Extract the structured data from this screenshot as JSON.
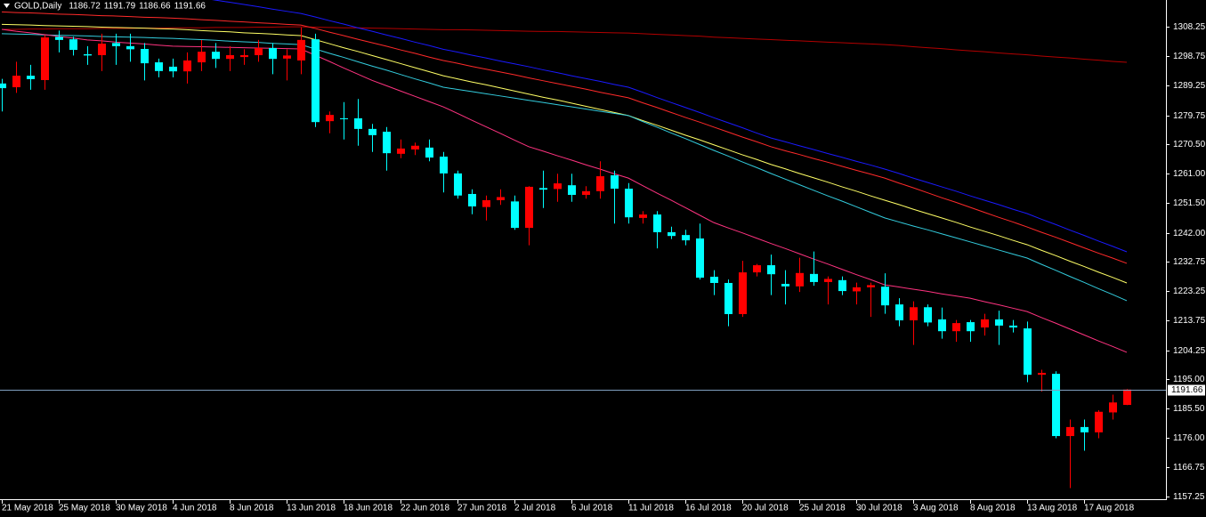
{
  "chart_data": {
    "type": "candlestick",
    "symbol_label": "GOLD,Daily",
    "categories": [
      "21 May 2018",
      null,
      null,
      null,
      "25 May 2018",
      null,
      null,
      null,
      "30 May 2018",
      null,
      null,
      null,
      "4 Jun 2018",
      null,
      null,
      null,
      "8 Jun 2018",
      null,
      null,
      null,
      "13 Jun 2018",
      null,
      null,
      null,
      "18 Jun 2018",
      null,
      null,
      null,
      "22 Jun 2018",
      null,
      null,
      null,
      "27 Jun 2018",
      null,
      null,
      null,
      "2 Jul 2018",
      null,
      null,
      null,
      "6 Jul 2018",
      null,
      null,
      null,
      "11 Jul 2018",
      null,
      null,
      null,
      "16 Jul 2018",
      null,
      null,
      null,
      "20 Jul 2018",
      null,
      null,
      null,
      "25 Jul 2018",
      null,
      null,
      null,
      "30 Jul 2018",
      null,
      null,
      null,
      "3 Aug 2018",
      null,
      null,
      null,
      "8 Aug 2018",
      null,
      null,
      null,
      "13 Aug 2018",
      null,
      null,
      null,
      "17 Aug 2018",
      null,
      null,
      null
    ],
    "open": [
      1290,
      1288.8,
      1292.5,
      1291.1,
      1305,
      1304.2,
      1299.4,
      1299.1,
      1303,
      1302,
      1301.1,
      1296.8,
      1295.4,
      1293.9,
      1296.8,
      1300.2,
      1297.9,
      1298.5,
      1299.1,
      1301.4,
      1298,
      1297.4,
      1304.2,
      1277.9,
      1278.8,
      1278.8,
      1275.4,
      1274.5,
      1267.4,
      1268.8,
      1269.4,
      1266.5,
      1261.1,
      1254.5,
      1250.3,
      1252.5,
      1252.1,
      1243.6,
      1256.4,
      1256.1,
      1257.3,
      1254.2,
      1255.4,
      1260.5,
      1256.2,
      1246.8,
      1247.9,
      1242.2,
      1241.3,
      1240.2,
      1227.9,
      1225.9,
      1215.9,
      1229.3,
      1231.6,
      1225.6,
      1224.8,
      1228.8,
      1226.2,
      1226.8,
      1223.2,
      1224.5,
      1224.7,
      1219,
      1213.9,
      1218.1,
      1214.2,
      1210.4,
      1213.3,
      1211.6,
      1214.2,
      1212.2,
      1211.3,
      1196.4,
      1196.7,
      1176.7,
      1179.6,
      1177.9,
      1184.3,
      1186.72
    ],
    "high": [
      1291.5,
      1297,
      1296,
      1305.5,
      1307,
      1305,
      1302,
      1306,
      1306,
      1306,
      1303,
      1298,
      1298,
      1300,
      1304,
      1303,
      1302,
      1301,
      1304,
      1303,
      1301,
      1308,
      1306,
      1281,
      1284,
      1285,
      1277,
      1276,
      1272,
      1271,
      1272,
      1268,
      1262,
      1256,
      1254,
      1256,
      1254,
      1257,
      1262,
      1261,
      1261,
      1257,
      1265,
      1262,
      1258,
      1249,
      1249,
      1244,
      1243,
      1245,
      1230,
      1227,
      1233,
      1232,
      1235,
      1230,
      1234,
      1236,
      1228,
      1228,
      1226,
      1226,
      1229,
      1221,
      1220,
      1219,
      1218,
      1214,
      1214,
      1216,
      1217,
      1214,
      1213.5,
      1198,
      1197.5,
      1182,
      1182,
      1185,
      1190,
      1191.79
    ],
    "low": [
      1281,
      1287,
      1288,
      1288,
      1300,
      1299,
      1296,
      1294,
      1296,
      1297,
      1291,
      1292,
      1292,
      1290,
      1294,
      1295,
      1294,
      1296,
      1297,
      1293,
      1291,
      1293,
      1276,
      1274,
      1272,
      1270,
      1268,
      1262,
      1266,
      1267,
      1265,
      1255,
      1253,
      1248,
      1246,
      1251,
      1243,
      1238,
      1250,
      1252,
      1252,
      1253,
      1253,
      1245,
      1245,
      1245,
      1237,
      1240,
      1238,
      1227,
      1222,
      1212,
      1215,
      1228,
      1222,
      1219,
      1223,
      1225,
      1219,
      1222,
      1219,
      1215,
      1216,
      1212,
      1206,
      1212,
      1208,
      1207,
      1207,
      1209,
      1206,
      1210,
      1194,
      1191,
      1176,
      1160,
      1172,
      1176,
      1182,
      1186.66
    ],
    "close": [
      1288.5,
      1292.5,
      1291.4,
      1304.8,
      1304,
      1300.8,
      1299,
      1302.8,
      1302,
      1301,
      1296.5,
      1294,
      1293.9,
      1297.4,
      1300.2,
      1297.9,
      1299.1,
      1299.1,
      1301.4,
      1297.9,
      1299,
      1304,
      1277.6,
      1279.9,
      1278.6,
      1275.4,
      1273.4,
      1267.6,
      1269.1,
      1270,
      1266.2,
      1261.1,
      1254,
      1250.5,
      1252.5,
      1253.5,
      1243.6,
      1256.8,
      1255.9,
      1257.9,
      1254.2,
      1255.4,
      1260.2,
      1256.2,
      1247,
      1247.9,
      1242.2,
      1241,
      1239.6,
      1227.6,
      1225.9,
      1215.9,
      1229.3,
      1231.6,
      1228.7,
      1224.8,
      1229.1,
      1226.2,
      1227.2,
      1223.3,
      1224.5,
      1225.2,
      1218.7,
      1213.9,
      1218.1,
      1213.2,
      1210.4,
      1213,
      1210.4,
      1214.2,
      1212.2,
      1211.6,
      1196.4,
      1197,
      1176.7,
      1179.6,
      1177.9,
      1184.5,
      1187.5,
      1191.66
    ],
    "up_color": "#ff0000",
    "down_color": "#00ffff",
    "series": [
      {
        "color": "#b30000",
        "values": [
          1307.4,
          1307.4,
          1307.5,
          1307.5,
          1307.6,
          1307.6,
          1307.6,
          1307.7,
          1307.7,
          1307.7,
          1307.8,
          1307.8,
          1307.9,
          1307.9,
          1307.9,
          1308.0,
          1308.0,
          1308.0,
          1308.1,
          1308.1,
          1308.2,
          1308.2,
          1308.1,
          1308.0,
          1307.9,
          1307.9,
          1307.8,
          1307.7,
          1307.6,
          1307.5,
          1307.4,
          1307.3,
          1307.3,
          1307.2,
          1307.1,
          1307.0,
          1306.9,
          1306.8,
          1306.7,
          1306.7,
          1306.6,
          1306.5,
          1306.4,
          1306.3,
          1306.2,
          1306.0,
          1305.8,
          1305.6,
          1305.4,
          1305.2,
          1304.9,
          1304.7,
          1304.5,
          1304.3,
          1304.1,
          1303.9,
          1303.7,
          1303.5,
          1303.3,
          1303.1,
          1302.9,
          1302.7,
          1302.5,
          1302.2,
          1301.8,
          1301.5,
          1301.2,
          1300.8,
          1300.5,
          1300.2,
          1299.8,
          1299.5,
          1299.2,
          1298.8,
          1298.5,
          1298.2,
          1297.8,
          1297.5,
          1297.1,
          1296.8
        ]
      },
      {
        "color": "#1a1aff",
        "values": [
          null,
          null,
          null,
          null,
          null,
          null,
          null,
          null,
          null,
          null,
          null,
          null,
          null,
          null,
          1317.5,
          1316.8,
          1316.1,
          1315.4,
          1314.7,
          1313.9,
          1313.2,
          1312.5,
          1311.4,
          1310.2,
          1309.1,
          1307.9,
          1306.8,
          1305.6,
          1304.5,
          1303.3,
          1302.2,
          1301.0,
          1300.1,
          1299.1,
          1298.2,
          1297.2,
          1296.3,
          1295.4,
          1294.4,
          1293.5,
          1292.5,
          1291.6,
          1290.7,
          1289.7,
          1288.8,
          1287.2,
          1285.5,
          1283.9,
          1282.3,
          1280.7,
          1279.0,
          1277.4,
          1275.8,
          1274.1,
          1272.5,
          1271.3,
          1270.0,
          1268.8,
          1267.5,
          1266.3,
          1265.0,
          1263.8,
          1262.5,
          1261.1,
          1259.6,
          1258.2,
          1256.8,
          1255.4,
          1253.9,
          1252.5,
          1251.1,
          1249.6,
          1248.2,
          1246.4,
          1244.7,
          1242.9,
          1241.2,
          1239.4,
          1237.7,
          1235.9
        ]
      },
      {
        "color": "#ff2a2a",
        "values": [
          1313.0,
          1312.8,
          1312.7,
          1312.5,
          1312.3,
          1312.2,
          1312.0,
          1311.8,
          1311.7,
          1311.5,
          1311.3,
          1311.2,
          1311.0,
          1310.8,
          1310.5,
          1310.3,
          1310.0,
          1309.8,
          1309.5,
          1309.3,
          1309.0,
          1308.8,
          1307.7,
          1306.5,
          1305.4,
          1304.2,
          1303.1,
          1302.0,
          1300.8,
          1299.7,
          1298.5,
          1297.4,
          1296.5,
          1295.5,
          1294.6,
          1293.7,
          1292.8,
          1291.8,
          1290.9,
          1290.0,
          1289.1,
          1288.2,
          1287.2,
          1286.3,
          1285.4,
          1283.8,
          1282.3,
          1280.7,
          1279.1,
          1277.6,
          1276.0,
          1274.4,
          1272.8,
          1271.3,
          1269.7,
          1268.4,
          1267.2,
          1265.9,
          1264.7,
          1263.4,
          1262.1,
          1260.9,
          1259.6,
          1258.0,
          1256.5,
          1254.9,
          1253.3,
          1251.8,
          1250.2,
          1248.6,
          1247.0,
          1245.5,
          1243.9,
          1242.2,
          1240.6,
          1238.9,
          1237.2,
          1235.5,
          1233.9,
          1232.2
        ]
      },
      {
        "color": "#ffff66",
        "values": [
          1309.0,
          1308.9,
          1308.8,
          1308.6,
          1308.5,
          1308.4,
          1308.3,
          1308.1,
          1308.0,
          1307.9,
          1307.8,
          1307.6,
          1307.5,
          1307.3,
          1307.0,
          1306.8,
          1306.6,
          1306.3,
          1306.1,
          1305.9,
          1305.6,
          1305.4,
          1304.1,
          1302.8,
          1301.5,
          1300.3,
          1299.0,
          1297.7,
          1296.4,
          1295.1,
          1293.8,
          1292.5,
          1291.5,
          1290.5,
          1289.6,
          1288.6,
          1287.6,
          1286.6,
          1285.6,
          1284.7,
          1283.7,
          1282.7,
          1281.7,
          1280.7,
          1279.7,
          1278.1,
          1276.6,
          1275.0,
          1273.4,
          1271.9,
          1270.3,
          1268.7,
          1267.1,
          1265.6,
          1264.0,
          1262.6,
          1261.1,
          1259.7,
          1258.3,
          1256.8,
          1255.4,
          1253.9,
          1252.5,
          1251.1,
          1249.6,
          1248.2,
          1246.8,
          1245.4,
          1243.9,
          1242.5,
          1241.1,
          1239.6,
          1238.2,
          1236.4,
          1234.7,
          1232.9,
          1231.2,
          1229.4,
          1227.7,
          1225.9
        ]
      },
      {
        "color": "#33ccdd",
        "values": [
          1306.0,
          1305.9,
          1305.8,
          1305.6,
          1305.5,
          1305.4,
          1305.3,
          1305.1,
          1305.0,
          1304.9,
          1304.8,
          1304.6,
          1304.5,
          1304.3,
          1304.1,
          1303.9,
          1303.6,
          1303.4,
          1303.2,
          1302.9,
          1302.7,
          1302.5,
          1301.1,
          1299.7,
          1298.4,
          1297.0,
          1295.6,
          1294.3,
          1292.9,
          1291.5,
          1290.2,
          1288.8,
          1288.1,
          1287.4,
          1286.7,
          1286.0,
          1285.3,
          1284.6,
          1283.9,
          1283.2,
          1282.5,
          1281.8,
          1281.1,
          1280.4,
          1279.7,
          1277.8,
          1276.0,
          1274.1,
          1272.3,
          1270.4,
          1268.5,
          1266.7,
          1264.8,
          1263.0,
          1261.1,
          1259.3,
          1257.5,
          1255.7,
          1253.9,
          1252.2,
          1250.4,
          1248.6,
          1246.8,
          1245.5,
          1244.2,
          1243.0,
          1241.7,
          1240.4,
          1239.1,
          1237.8,
          1236.5,
          1235.2,
          1233.9,
          1231.9,
          1230.0,
          1228.0,
          1226.1,
          1224.1,
          1222.2,
          1220.2
        ]
      },
      {
        "color": "#ff3380",
        "values": [
          1307.4,
          1306.8,
          1306.3,
          1305.7,
          1305.1,
          1304.6,
          1304.0,
          1303.7,
          1303.3,
          1303.0,
          1302.7,
          1302.3,
          1302.0,
          1301.9,
          1301.8,
          1301.7,
          1301.6,
          1301.5,
          1301.4,
          1301.3,
          1301.2,
          1301.1,
          1299.1,
          1297.1,
          1295.0,
          1293.0,
          1291.0,
          1289.3,
          1287.6,
          1285.9,
          1284.2,
          1282.5,
          1280.4,
          1278.2,
          1276.1,
          1274.0,
          1271.8,
          1269.7,
          1268.3,
          1266.8,
          1265.4,
          1263.9,
          1262.5,
          1261.0,
          1259.6,
          1257.2,
          1254.8,
          1252.5,
          1250.1,
          1247.7,
          1245.3,
          1243.6,
          1242.0,
          1240.3,
          1238.6,
          1237.0,
          1235.3,
          1233.6,
          1232.0,
          1230.3,
          1228.6,
          1227.0,
          1225.3,
          1224.6,
          1223.9,
          1223.2,
          1222.4,
          1221.7,
          1221.0,
          1219.9,
          1218.9,
          1217.8,
          1216.7,
          1214.8,
          1213.0,
          1211.1,
          1209.2,
          1207.3,
          1205.5,
          1203.6
        ]
      }
    ],
    "price_line_color": "#7f9fc0",
    "ylim": [
      1156.41,
      1316.83
    ],
    "yticks": [
      1308.25,
      1298.75,
      1289.25,
      1279.75,
      {
        "value": 1270.5,
        "label": "1270.50"
      },
      {
        "value": 1261,
        "label": "1261.00"
      },
      {
        "value": 1251.5,
        "label": "1251.50"
      },
      {
        "value": 1242,
        "label": "1242.00"
      },
      1232.75,
      1223.25,
      1213.75,
      1204.25,
      {
        "value": 1195,
        "label": "1195.00"
      },
      {
        "value": 1185.5,
        "label": "1185.50"
      },
      {
        "value": 1176,
        "label": "1176.00"
      },
      1166.75,
      1157.25
    ],
    "grid": false
  }
}
